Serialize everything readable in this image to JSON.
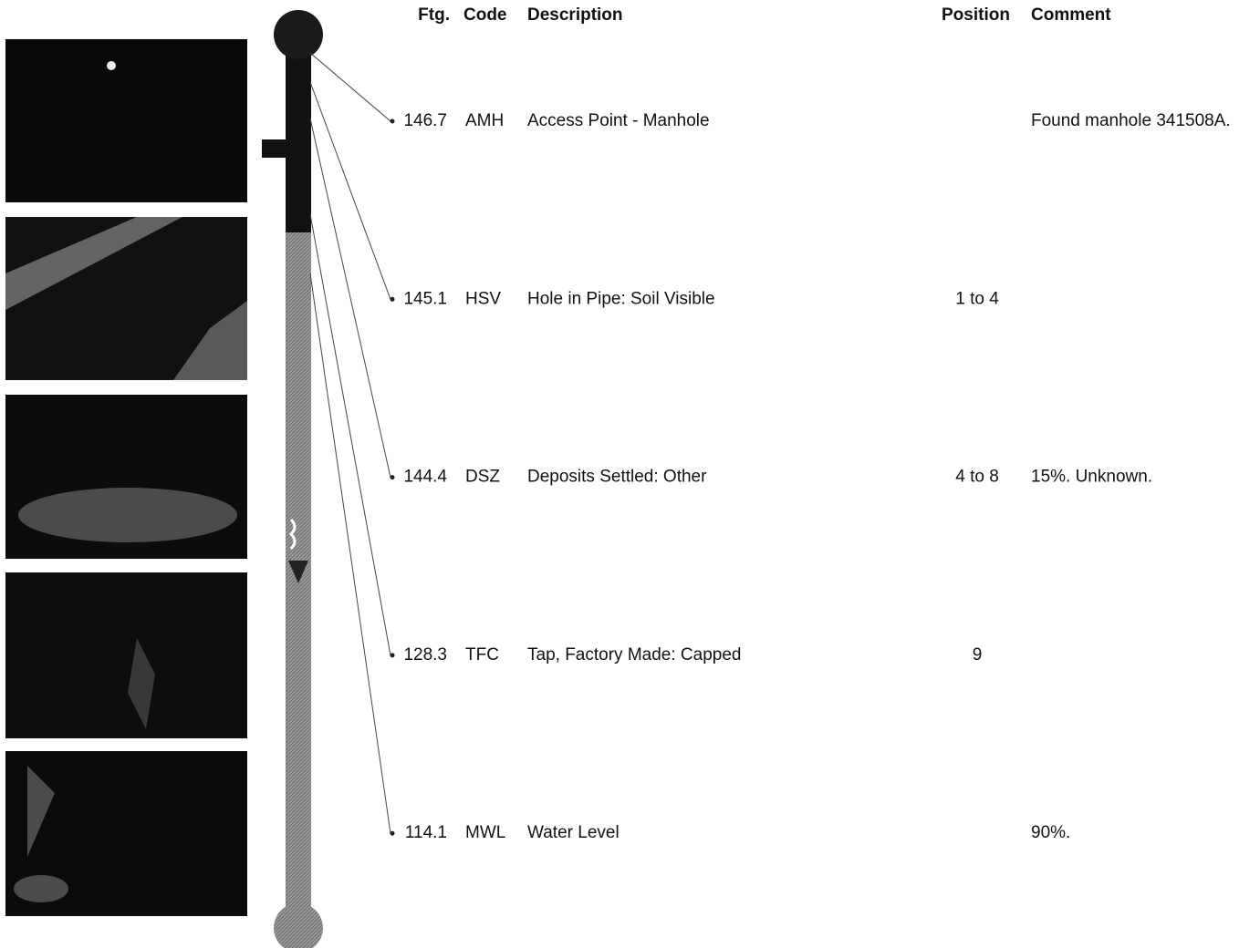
{
  "header": {
    "ftg": "Ftg.",
    "code": "Code",
    "description": "Description",
    "position": "Position",
    "comment": "Comment"
  },
  "rows": [
    {
      "ftg": "146.7",
      "code": "AMH",
      "description": "Access Point - Manhole",
      "comment": "Found manhole 341508A."
    },
    {
      "ftg": "145.1",
      "code": "HSV",
      "description": "Hole in Pipe: Soil Visible",
      "position": "1 to 4"
    },
    {
      "ftg": "144.4",
      "code": "DSZ",
      "description": "Deposits Settled: Other",
      "position": "4 to 8",
      "comment": "15%. Unknown."
    },
    {
      "ftg": "128.3",
      "code": "TFC",
      "description": "Tap, Factory Made: Capped",
      "position": "9"
    },
    {
      "ftg": "114.1",
      "code": "MWL",
      "description": "Water Level",
      "comment": "90%."
    }
  ]
}
